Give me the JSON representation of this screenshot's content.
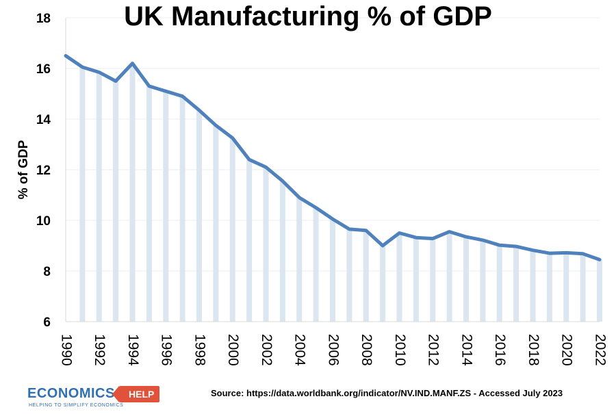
{
  "chart_data": {
    "type": "line",
    "title": "UK Manufacturing % of GDP",
    "ylabel": "% of GDP",
    "xlabel": "",
    "ylim": [
      6,
      18
    ],
    "yticks": [
      6,
      8,
      10,
      12,
      14,
      16,
      18
    ],
    "xlim": [
      1990,
      2022
    ],
    "xticks": [
      1990,
      1992,
      1994,
      1996,
      1998,
      2000,
      2002,
      2004,
      2006,
      2008,
      2010,
      2012,
      2014,
      2016,
      2018,
      2020,
      2022
    ],
    "x": [
      1990,
      1991,
      1992,
      1993,
      1994,
      1995,
      1996,
      1997,
      1998,
      1999,
      2000,
      2001,
      2002,
      2003,
      2004,
      2005,
      2006,
      2007,
      2008,
      2009,
      2010,
      2011,
      2012,
      2013,
      2014,
      2015,
      2016,
      2017,
      2018,
      2019,
      2020,
      2021,
      2022
    ],
    "series": [
      {
        "values": [
          16.5,
          16.05,
          15.85,
          15.5,
          16.2,
          15.3,
          15.1,
          14.9,
          14.35,
          13.75,
          13.25,
          12.4,
          12.1,
          11.55,
          10.9,
          10.5,
          10.05,
          9.65,
          9.6,
          9.0,
          9.5,
          9.32,
          9.28,
          9.55,
          9.35,
          9.22,
          9.02,
          8.97,
          8.82,
          8.7,
          8.72,
          8.68,
          8.45
        ],
        "color": "#4f81bd"
      }
    ],
    "bar_color": "#dce6f1",
    "grid": true,
    "grid_color": "#e8eef6"
  },
  "source_note": "Source: https://data.worldbank.org/indicator/NV.IND.MANF.ZS - Accessed July 2023",
  "logo": {
    "word": "ECONOMICS",
    "badge": "HELP",
    "tagline": "HELPING TO SIMPLIFY ECONOMICS"
  }
}
